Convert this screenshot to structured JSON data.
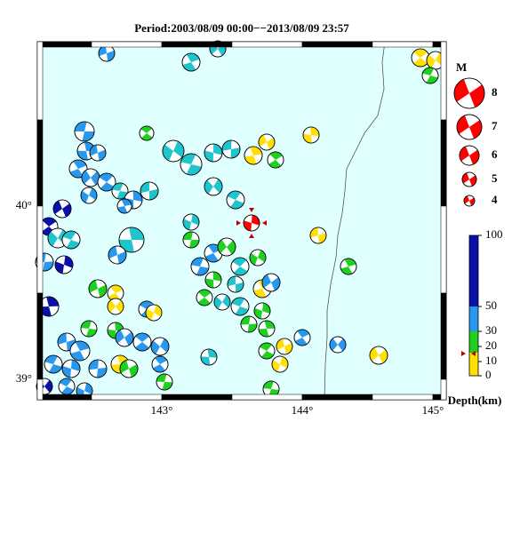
{
  "header": {
    "title": "Period:2003/08/09 00:00−−2013/08/09 23:57"
  },
  "map": {
    "lat_labels": [
      "40°",
      "39°"
    ],
    "lon_labels": [
      "143°",
      "144°",
      "145°"
    ]
  },
  "magnitude_legend": {
    "title": "M",
    "labels": [
      "8",
      "7",
      "6",
      "5",
      "4"
    ]
  },
  "depth_legend": {
    "ticks": [
      "100",
      "50",
      "30",
      "20",
      "10",
      "0"
    ],
    "label": "Depth(km)"
  }
}
